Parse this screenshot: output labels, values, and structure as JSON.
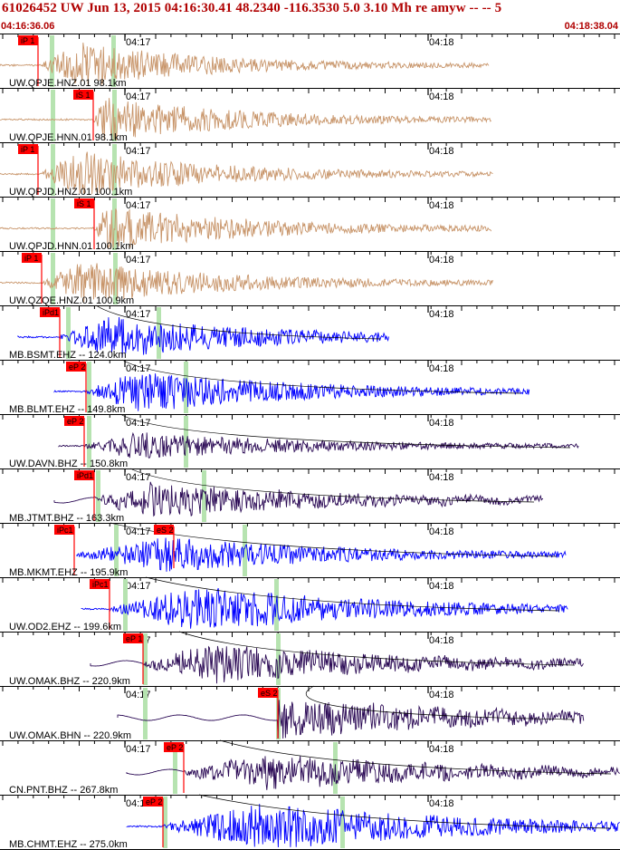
{
  "header": {
    "title": "61026452 UW Jun 13, 2015 04:16:30.41   48.2340 -116.3530  5.0 3.10 Mh re amyw -- --   5",
    "start_time": "04:16:36.06",
    "end_time": "04:18:38.04"
  },
  "time_marks": [
    "04:17",
    "04:18"
  ],
  "colors": {
    "strong_motion": "#c8956a",
    "short_period": "#0000ff",
    "broadband": "#2b0a55",
    "pick": "#ff0000",
    "window": "#b6e3b0",
    "text": "#000000"
  },
  "traces": [
    {
      "label": "UW.QPJE.HNZ.01 98.1km",
      "pick": "iP 1",
      "color": "strong_motion"
    },
    {
      "label": "UW.QPJE.HNN.01 98.1km",
      "pick": "iS 1",
      "color": "strong_motion"
    },
    {
      "label": "UW.QPJD.HNZ.01 100.1km",
      "pick": "iP 1",
      "color": "strong_motion"
    },
    {
      "label": "UW.QPJD.HNN.01 100.1km",
      "pick": "iS 1",
      "color": "strong_motion"
    },
    {
      "label": "UW.QZQE.HNZ.01 100.9km",
      "pick": "iP 1",
      "color": "strong_motion"
    },
    {
      "label": "MB.BSMT.EHZ -- 124.0km",
      "pick": "iPd1",
      "color": "short_period"
    },
    {
      "label": "MB.BLMT.EHZ -- 149.8km",
      "pick": "eP 2",
      "color": "short_period"
    },
    {
      "label": "UW.DAVN.BHZ -- 150.8km",
      "pick": "eP 2",
      "color": "broadband"
    },
    {
      "label": "MB.JTMT.BHZ -- 163.3km",
      "pick": "iPd1",
      "color": "broadband"
    },
    {
      "label": "MB.MKMT.EHZ -- 195.9km",
      "pick": "iPc1",
      "pick2": "eS 2",
      "color": "short_period"
    },
    {
      "label": "UW.OD2.EHZ -- 199.6km",
      "pick": "iPc1",
      "color": "short_period"
    },
    {
      "label": "UW.OMAK.BHZ -- 220.9km",
      "pick": "eP 1",
      "color": "broadband"
    },
    {
      "label": "UW.OMAK.BHN -- 220.9km",
      "pick": "eS 2",
      "color": "broadband"
    },
    {
      "label": "CN.PNT.BHZ -- 267.8km",
      "pick": "eP 2",
      "color": "broadband"
    },
    {
      "label": "MB.CHMT.EHZ -- 275.0km",
      "pick": "eP 2",
      "color": "short_period"
    }
  ]
}
